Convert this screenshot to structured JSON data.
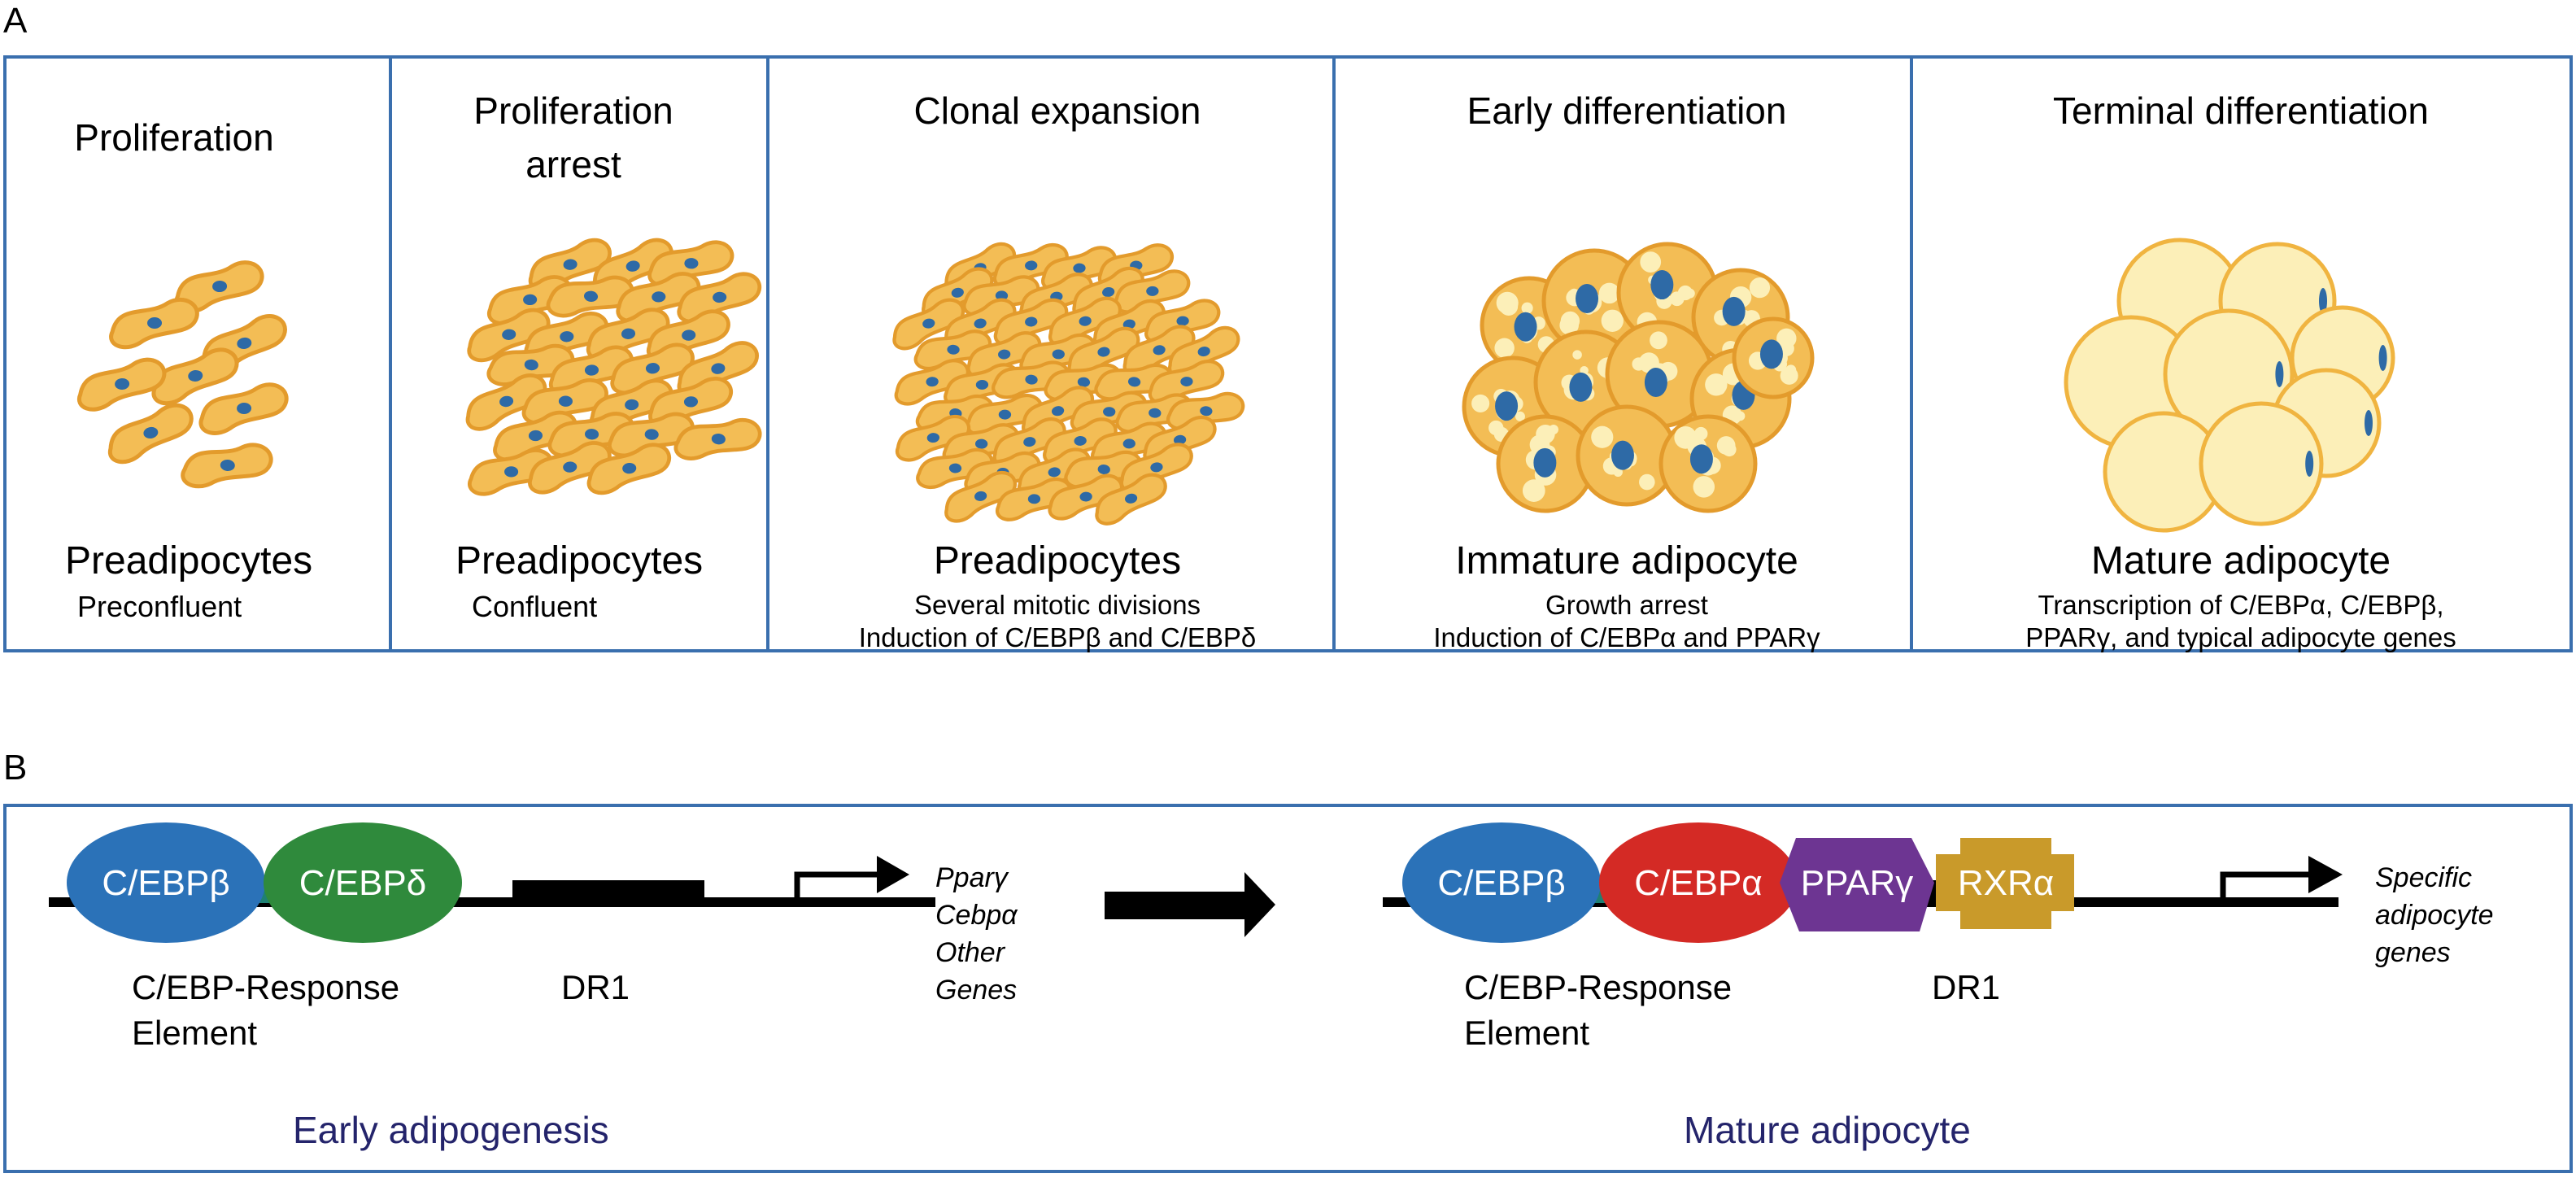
{
  "panel_a": {
    "label": "A",
    "stages": [
      {
        "title": [
          "Proliferation"
        ],
        "cell_type": "Preadipocytes",
        "details": [
          "Preconfluent"
        ]
      },
      {
        "title": [
          "Proliferation",
          "arrest"
        ],
        "cell_type": "Preadipocytes",
        "details": [
          "Confluent"
        ]
      },
      {
        "title": [
          "Clonal expansion"
        ],
        "cell_type": "Preadipocytes",
        "details": [
          "Several mitotic divisions",
          "Induction of C/EBPβ and C/EBPδ"
        ]
      },
      {
        "title": [
          "Early differentiation"
        ],
        "cell_type": "Immature adipocyte",
        "details": [
          "Growth arrest",
          "Induction of C/EBPα and PPARγ"
        ]
      },
      {
        "title": [
          "Terminal differentiation"
        ],
        "cell_type": "Mature adipocyte",
        "details": [
          "Transcription of C/EBPα, C/EBPβ,",
          "PPARγ, and typical adipocyte genes"
        ]
      }
    ]
  },
  "panel_b": {
    "label": "B",
    "early": {
      "factors": [
        "C/EBPβ",
        "C/EBPδ"
      ],
      "response_element": [
        "C/EBP-Response",
        "Element"
      ],
      "dr1": "DR1",
      "target_genes": [
        "Pparγ",
        "Cebpα",
        "Other",
        "Genes"
      ],
      "stage": "Early adipogenesis"
    },
    "mature": {
      "factors": [
        "C/EBPβ",
        "C/EBPα",
        "PPARγ",
        "RXRα"
      ],
      "response_element": [
        "C/EBP-Response",
        "Element"
      ],
      "dr1": "DR1",
      "target_genes": [
        "Specific",
        "adipocyte",
        "genes"
      ],
      "stage": "Mature adipocyte"
    }
  },
  "colors": {
    "border": "#3a6fae",
    "cell_fill": "#f3bd55",
    "cell_stroke": "#e39b2c",
    "nucleus": "#2e6aa6",
    "adipocyte_fill": "#fcefb8",
    "cebpb": "#2b72b8",
    "cebpd": "#2f8a3c",
    "cebpa": "#d42a25",
    "pparg": "#6d3592",
    "rxra": "#c99a2a",
    "response_element": "#1f8073",
    "stage_text": "#24246b"
  }
}
